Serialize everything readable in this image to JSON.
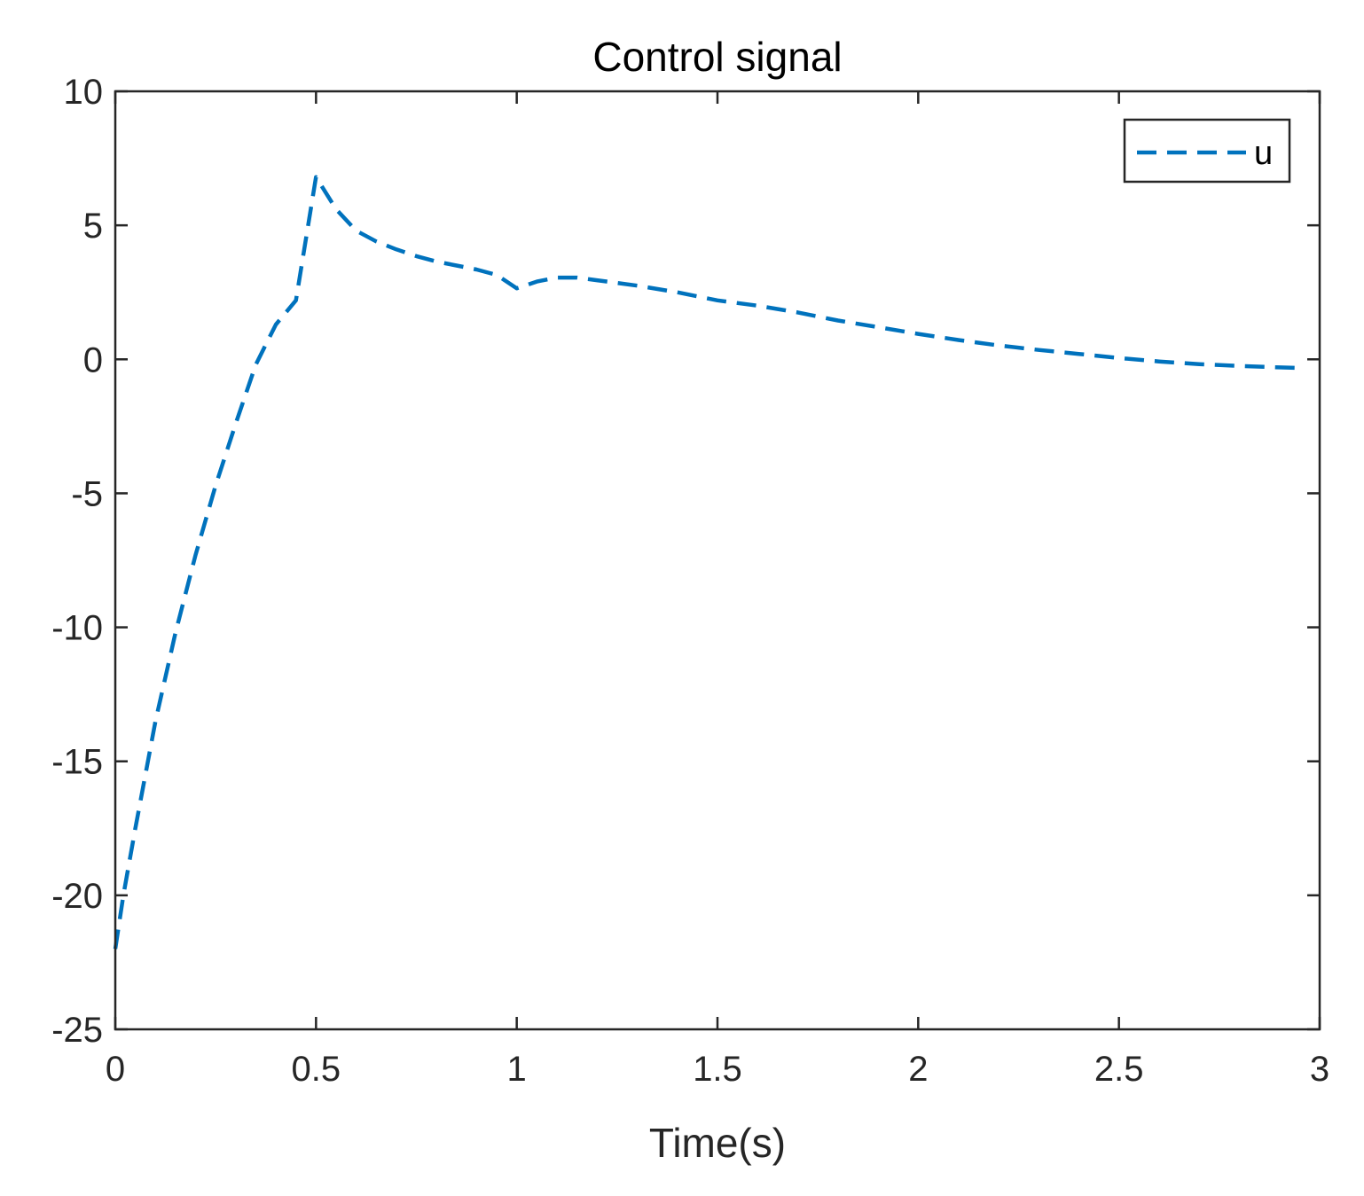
{
  "chart_data": {
    "type": "line",
    "title": "Control signal",
    "xlabel": "Time(s)",
    "ylabel": "",
    "xlim": [
      0,
      3
    ],
    "ylim": [
      -25,
      10
    ],
    "xticks": [
      0,
      0.5,
      1,
      1.5,
      2,
      2.5,
      3
    ],
    "xtick_labels": [
      "0",
      "0.5",
      "1",
      "1.5",
      "2",
      "2.5",
      "3"
    ],
    "yticks": [
      -25,
      -20,
      -15,
      -10,
      -5,
      0,
      5,
      10
    ],
    "ytick_labels": [
      "-25",
      "-20",
      "-15",
      "-10",
      "-5",
      "0",
      "5",
      "10"
    ],
    "grid": false,
    "legend_position": "top-right",
    "series": [
      {
        "name": "u",
        "color": "#0072BD",
        "line_style": "dashed",
        "x": [
          0,
          0.02,
          0.05,
          0.1,
          0.15,
          0.2,
          0.25,
          0.3,
          0.35,
          0.4,
          0.45,
          0.5,
          0.55,
          0.6,
          0.65,
          0.7,
          0.75,
          0.8,
          0.85,
          0.9,
          0.95,
          1.0,
          1.05,
          1.1,
          1.15,
          1.2,
          1.3,
          1.4,
          1.5,
          1.6,
          1.7,
          1.8,
          1.9,
          2.0,
          2.1,
          2.2,
          2.3,
          2.4,
          2.5,
          2.6,
          2.7,
          2.8,
          2.9,
          2.95
        ],
        "y": [
          -22,
          -20,
          -17.5,
          -13.5,
          -10.2,
          -7.3,
          -4.7,
          -2.4,
          -0.2,
          1.3,
          2.2,
          6.8,
          5.6,
          4.8,
          4.4,
          4.1,
          3.85,
          3.65,
          3.5,
          3.35,
          3.15,
          2.65,
          2.9,
          3.05,
          3.05,
          2.95,
          2.75,
          2.5,
          2.2,
          2.0,
          1.75,
          1.45,
          1.2,
          0.95,
          0.72,
          0.52,
          0.35,
          0.2,
          0.05,
          -0.08,
          -0.18,
          -0.25,
          -0.3,
          -0.32
        ]
      }
    ]
  }
}
